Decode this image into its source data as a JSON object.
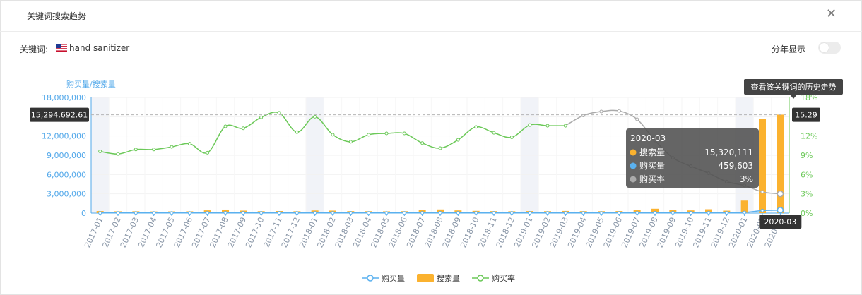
{
  "header": {
    "title": "关键词搜索趋势"
  },
  "keyword": {
    "label": "关键词:",
    "value": "hand sanitizer"
  },
  "controls": {
    "year_toggle_label": "分年显示",
    "year_toggle_on": false
  },
  "colors": {
    "search": "#fbb22f",
    "buy": "#5ab1ef",
    "rate": "#6cc959",
    "rate_projected": "#aaaaaa",
    "left_axis": "#52a8ea",
    "right_axis": "#6cc959"
  },
  "chart_data": {
    "type": "bar+line",
    "left_axis_title": "购买量/搜索量",
    "y_left": {
      "min": 0,
      "max": 18000000,
      "ticks": [
        "0",
        "3,000,000",
        "6,000,000",
        "9,000,000",
        "12,000,000",
        "15,000,000",
        "18,000,000"
      ]
    },
    "y_right": {
      "min": 0,
      "max": 18,
      "ticks": [
        "0%",
        "3%",
        "6%",
        "9%",
        "12%",
        "15%",
        "18%"
      ]
    },
    "categories": [
      "2017-01",
      "2017-02",
      "2017-03",
      "2017-04",
      "2017-05",
      "2017-06",
      "2017-07",
      "2017-08",
      "2017-09",
      "2017-10",
      "2017-11",
      "2017-12",
      "2018-01",
      "2018-02",
      "2018-03",
      "2018-04",
      "2018-05",
      "2018-06",
      "2018-07",
      "2018-08",
      "2018-09",
      "2018-10",
      "2018-11",
      "2018-12",
      "2019-01",
      "2019-02",
      "2019-03",
      "2019-04",
      "2019-05",
      "2019-06",
      "2019-07",
      "2019-08",
      "2019-09",
      "2019-10",
      "2019-11",
      "2019-12",
      "2020-01",
      "2020-02",
      "2020-03"
    ],
    "highlight_categories": [
      "2017-01",
      "2018-01",
      "2019-01",
      "2020-01"
    ],
    "series": [
      {
        "name": "购买量",
        "kind": "line",
        "axis": "left",
        "values": [
          30000,
          28000,
          28000,
          30000,
          31000,
          30000,
          40000,
          50000,
          40000,
          35000,
          35000,
          35000,
          40000,
          38000,
          35000,
          34000,
          33000,
          34000,
          45000,
          55000,
          45000,
          40000,
          38000,
          36000,
          40000,
          38000,
          36000,
          33000,
          32000,
          34000,
          45000,
          60000,
          50000,
          45000,
          55000,
          40000,
          100000,
          400000,
          459603
        ]
      },
      {
        "name": "搜索量",
        "kind": "bar",
        "axis": "left",
        "values": [
          320000,
          280000,
          290000,
          260000,
          270000,
          280000,
          430000,
          550000,
          390000,
          300000,
          330000,
          290000,
          410000,
          390000,
          310000,
          300000,
          280000,
          300000,
          440000,
          570000,
          420000,
          350000,
          310000,
          290000,
          320000,
          300000,
          340000,
          310000,
          300000,
          320000,
          460000,
          680000,
          470000,
          420000,
          600000,
          380000,
          1950000,
          14600000,
          15320111
        ]
      },
      {
        "name": "购买率",
        "kind": "line",
        "axis": "right",
        "values": [
          9.6,
          9.2,
          9.9,
          9.9,
          10.3,
          10.8,
          9.4,
          13.5,
          13.2,
          14.9,
          15.6,
          12.6,
          15.0,
          12.2,
          11.1,
          12.2,
          12.4,
          12.4,
          10.9,
          10.1,
          11.4,
          13.4,
          12.5,
          11.8,
          13.7,
          13.6,
          13.6,
          15.2,
          15.8,
          15.9,
          14.6,
          11.3,
          8.6,
          7.3,
          6.2,
          4.9,
          4.3,
          3.3,
          3.0
        ],
        "projected_from": "2019-03"
      }
    ],
    "reference_line": {
      "axis": "left",
      "value": 15294692.61,
      "label": "15,294,692.61",
      "right_label": "15.29",
      "style": "dashed"
    },
    "tooltip": {
      "title": "2020-03",
      "rows": [
        {
          "name": "搜索量",
          "value": "15,320,111"
        },
        {
          "name": "购买量",
          "value": "459,603"
        },
        {
          "name": "购买率",
          "value": "3%"
        }
      ]
    },
    "x_pointer_label": "2020-03",
    "history_tip": "查看该关键词的历史走势",
    "legend": {
      "position": "bottom-center",
      "items": [
        "购买量",
        "搜索量",
        "购买率"
      ]
    },
    "grid": true
  }
}
